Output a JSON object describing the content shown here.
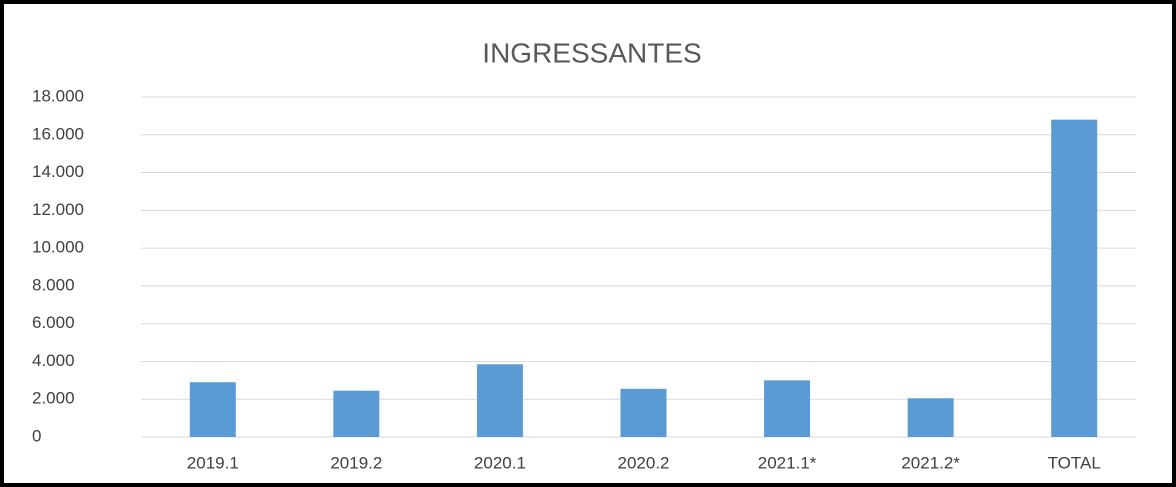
{
  "chart_data": {
    "type": "bar",
    "title": "INGRESSANTES",
    "categories": [
      "2019.1",
      "2019.2",
      "2020.1",
      "2020.2",
      "2021.1*",
      "2021.2*",
      "TOTAL"
    ],
    "values": [
      2900,
      2450,
      3850,
      2550,
      3000,
      2050,
      16800
    ],
    "color": "#5b9bd5",
    "ylim": [
      0,
      18000
    ],
    "yticks": [
      0,
      {
        "value": 2000,
        "label": "2.000"
      },
      {
        "value": 4000,
        "label": "4.000"
      },
      {
        "value": 6000,
        "label": "6.000"
      },
      {
        "value": 8000,
        "label": "8.000"
      },
      {
        "value": 10000,
        "label": "10.000"
      },
      {
        "value": 12000,
        "label": "12.000"
      },
      {
        "value": 14000,
        "label": "14.000"
      },
      {
        "value": 16000,
        "label": "16.000"
      },
      {
        "value": 18000,
        "label": "18.000"
      }
    ],
    "grid": true
  }
}
